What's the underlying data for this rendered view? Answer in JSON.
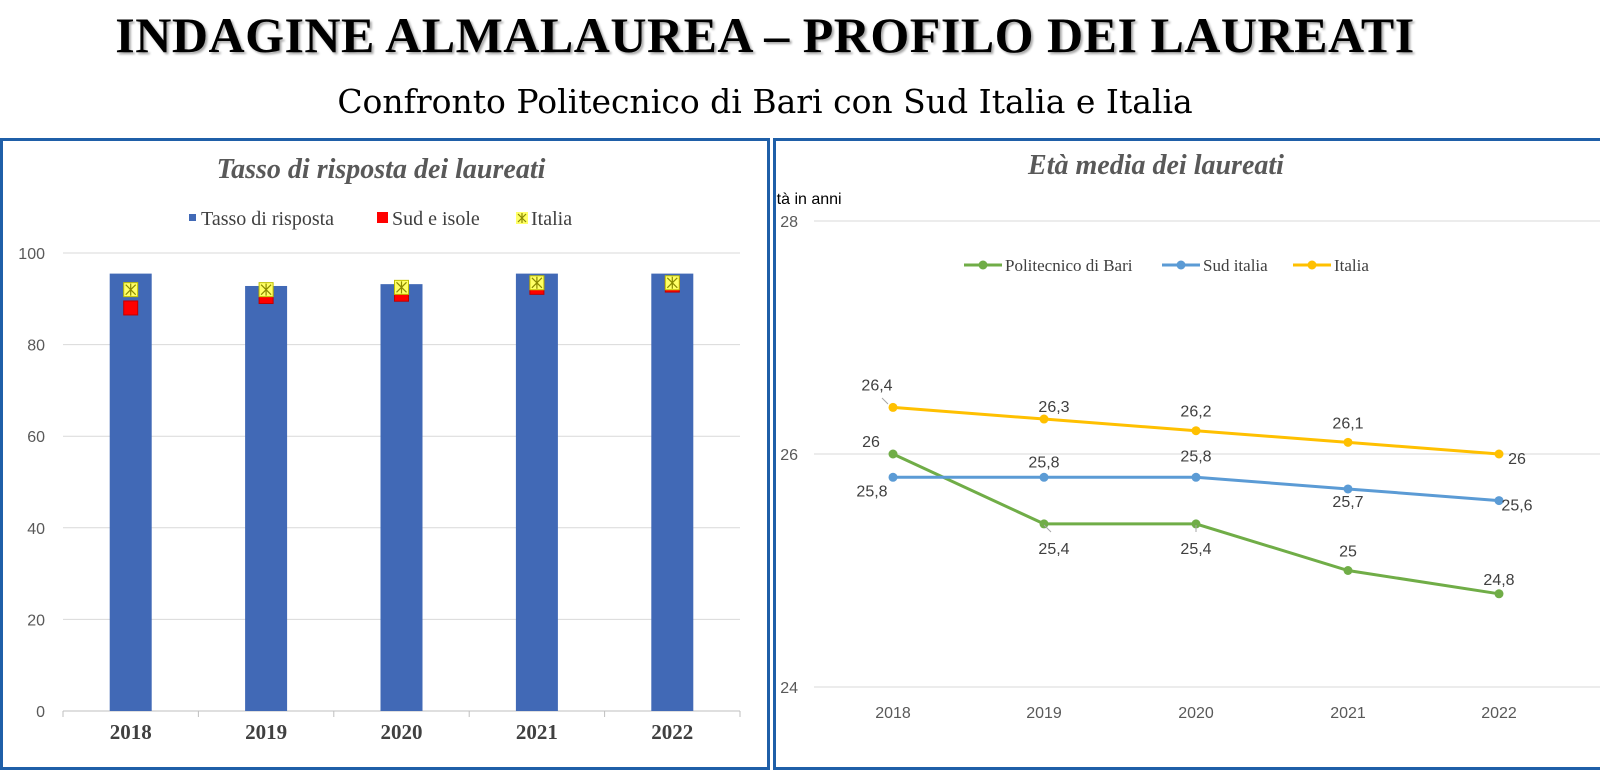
{
  "header": {
    "title": "INDAGINE ALMALAUREA – PROFILO DEI LAUREATI",
    "subtitle": "Confronto Politecnico di Bari con Sud Italia e Italia"
  },
  "chart_data": [
    {
      "type": "bar",
      "title": "Tasso di risposta dei laureati",
      "categories": [
        "2018",
        "2019",
        "2020",
        "2021",
        "2022"
      ],
      "ylim": [
        0,
        100
      ],
      "yticks": [
        0,
        20,
        40,
        60,
        80,
        100
      ],
      "grid": true,
      "legend_position": "top",
      "series": [
        {
          "name": "Tasso di risposta",
          "kind": "bar",
          "color": "#4169b6",
          "values": [
            95.5,
            92.8,
            93.2,
            95.5,
            95.5
          ]
        },
        {
          "name": "Sud e isole",
          "kind": "marker",
          "marker": "square",
          "color": "#ff0000",
          "values": [
            88,
            90.5,
            91,
            92.5,
            93
          ]
        },
        {
          "name": "Italia",
          "kind": "marker",
          "marker": "star-square",
          "color": "#ffff66",
          "values": [
            92,
            92,
            92.5,
            93.5,
            93.5
          ]
        }
      ]
    },
    {
      "type": "line",
      "title": "Età media dei laureati",
      "ylabel": "Età in anni",
      "categories": [
        "2018",
        "2019",
        "2020",
        "2021",
        "2022"
      ],
      "ylim": [
        24,
        28
      ],
      "yticks": [
        24,
        26,
        28
      ],
      "grid": true,
      "legend_position": "top",
      "series": [
        {
          "name": "Politecnico di Bari",
          "color": "#70ad47",
          "values": [
            26,
            25.4,
            25.4,
            25,
            24.8
          ],
          "labels": [
            "26",
            "25,4",
            "25,4",
            "25",
            "24,8"
          ]
        },
        {
          "name": "Sud italia",
          "color": "#5b9bd5",
          "values": [
            25.8,
            25.8,
            25.8,
            25.7,
            25.6
          ],
          "labels": [
            "25,8",
            "25,8",
            "25,8",
            "25,7",
            "25,6"
          ]
        },
        {
          "name": "Italia",
          "color": "#ffc000",
          "values": [
            26.4,
            26.3,
            26.2,
            26.1,
            26
          ],
          "labels": [
            "26,4",
            "26,3",
            "26,2",
            "26,1",
            "26"
          ]
        }
      ]
    }
  ]
}
